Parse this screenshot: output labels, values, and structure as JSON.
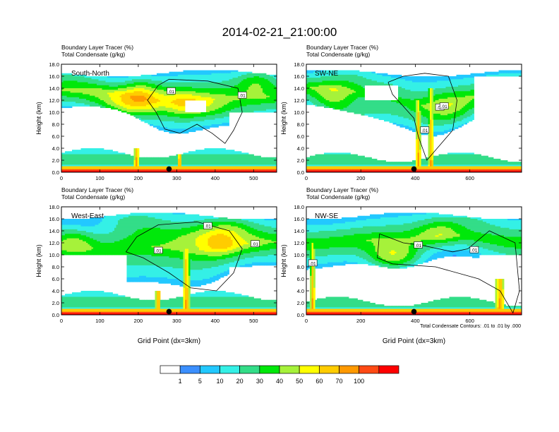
{
  "title": "2014-02-21_21:00:00",
  "colorbar": {
    "labels": [
      "1",
      "5",
      "10",
      "20",
      "30",
      "40",
      "50",
      "60",
      "70",
      "100"
    ],
    "colors": [
      "#ffffff",
      "#3b8fff",
      "#22c8ff",
      "#34f0e6",
      "#33dd88",
      "#00e80a",
      "#a6f23a",
      "#ffff00",
      "#ffcc00",
      "#ff9900",
      "#ff4a14",
      "#ff0000"
    ]
  },
  "footnote": "Total Condensate Contours: .01 to .01 by .000",
  "chart_data": [
    {
      "type": "heatmap",
      "panel": "South-North",
      "subtitle_line1": "Boundary Layer Tracer   (%)",
      "subtitle_line2": "Total Condensate   (g/kg)",
      "ylabel": "Height (km)",
      "xlabel": "",
      "xlim": [
        0,
        560
      ],
      "ylim": [
        0,
        18
      ],
      "xticks": [
        "0",
        "100",
        "200",
        "300",
        "400",
        "500"
      ],
      "yticks": [
        "0.0",
        "2.0",
        "4.0",
        "6.0",
        "8.0",
        "10.0",
        "12.0",
        "14.0",
        "16.0",
        "18.0"
      ],
      "contour_labels": [
        ".01",
        ".01"
      ],
      "marker_x": 280
    },
    {
      "type": "heatmap",
      "panel": "SW-NE",
      "subtitle_line1": "Boundary Layer Tracer   (%)",
      "subtitle_line2": "Total Condensate   (g/kg)",
      "ylabel": "Height (km)",
      "xlabel": "",
      "xlim": [
        0,
        790
      ],
      "ylim": [
        0,
        18
      ],
      "xticks": [
        "0",
        "200",
        "400",
        "600"
      ],
      "yticks": [
        "0.0",
        "2.0",
        "4.0",
        "6.0",
        "8.0",
        "10.0",
        "12.0",
        "14.0",
        "16.0",
        "18.0"
      ],
      "contour_labels": [
        ".01",
        ".01",
        ".01"
      ],
      "marker_x": 395
    },
    {
      "type": "heatmap",
      "panel": "West-East",
      "subtitle_line1": "Boundary Layer Tracer   (%)",
      "subtitle_line2": "Total Condensate   (g/kg)",
      "ylabel": "Height (km)",
      "xlabel": "Grid Point (dx=3km)",
      "xlim": [
        0,
        560
      ],
      "ylim": [
        0,
        18
      ],
      "xticks": [
        "0",
        "100",
        "200",
        "300",
        "400",
        "500"
      ],
      "yticks": [
        "0.0",
        "2.0",
        "4.0",
        "6.0",
        "8.0",
        "10.0",
        "12.0",
        "14.0",
        "16.0",
        "18.0"
      ],
      "contour_labels": [
        ".01",
        ".01",
        ".01"
      ],
      "marker_x": 280
    },
    {
      "type": "heatmap",
      "panel": "NW-SE",
      "subtitle_line1": "Boundary Layer Tracer   (%)",
      "subtitle_line2": "Total Condensate   (g/kg)",
      "ylabel": "Height (km)",
      "xlabel": "Grid Point (dx=3km)",
      "xlim": [
        0,
        790
      ],
      "ylim": [
        0,
        18
      ],
      "xticks": [
        "0",
        "200",
        "400",
        "600"
      ],
      "yticks": [
        "0.0",
        "2.0",
        "4.0",
        "6.0",
        "8.0",
        "10.0",
        "12.0",
        "14.0",
        "16.0",
        "18.0"
      ],
      "contour_labels": [
        ".01",
        ".01",
        ".01"
      ],
      "marker_x": 395
    }
  ]
}
